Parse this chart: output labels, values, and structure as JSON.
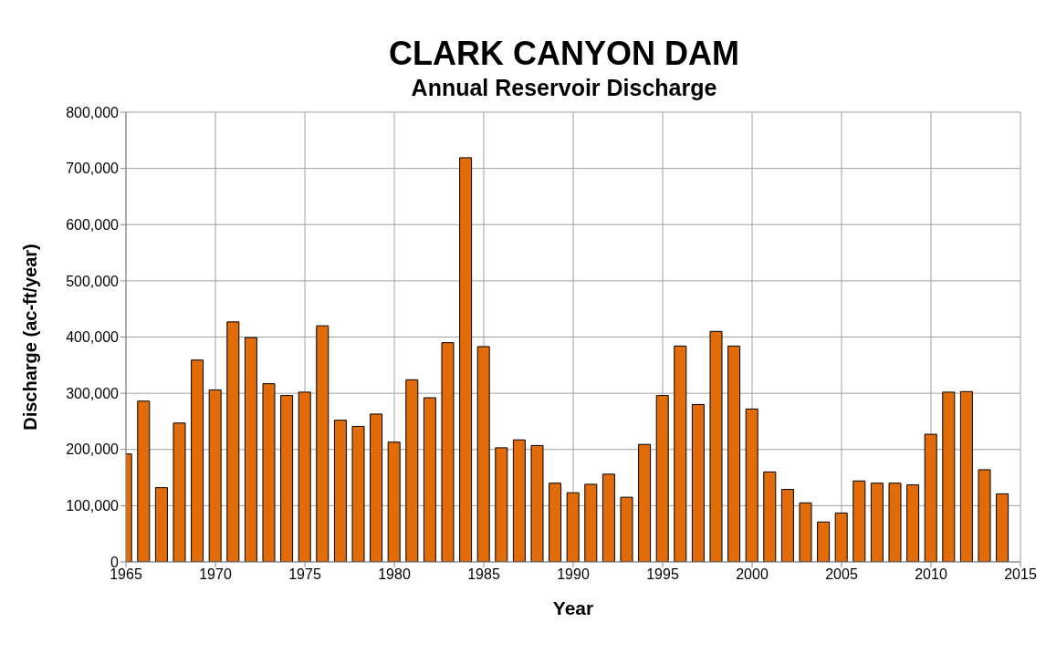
{
  "chart_data": {
    "type": "bar",
    "title": "CLARK CANYON DAM",
    "subtitle": "Annual Reservoir Discharge",
    "xlabel": "Year",
    "ylabel": "Discharge (ac-ft/year)",
    "x": [
      1965,
      1966,
      1967,
      1968,
      1969,
      1970,
      1971,
      1972,
      1973,
      1974,
      1975,
      1976,
      1977,
      1978,
      1979,
      1980,
      1981,
      1982,
      1983,
      1984,
      1985,
      1986,
      1987,
      1988,
      1989,
      1990,
      1991,
      1992,
      1993,
      1994,
      1995,
      1996,
      1997,
      1998,
      1999,
      2000,
      2001,
      2002,
      2003,
      2004,
      2005,
      2006,
      2007,
      2008,
      2009,
      2010,
      2011,
      2012,
      2013,
      2014
    ],
    "values": [
      192000,
      286000,
      132000,
      247000,
      359000,
      306000,
      427000,
      399000,
      317000,
      296000,
      302000,
      420000,
      252000,
      241000,
      263000,
      213000,
      324000,
      292000,
      390000,
      719000,
      383000,
      203000,
      217000,
      207000,
      140000,
      123000,
      138000,
      156000,
      115000,
      209000,
      296000,
      384000,
      280000,
      410000,
      384000,
      272000,
      160000,
      129000,
      105000,
      71000,
      87000,
      144000,
      140000,
      140000,
      137000,
      227000,
      302000,
      303000,
      164000,
      121000
    ],
    "color": "#e36c0a",
    "xlim": [
      1965,
      2015
    ],
    "xticks": [
      1965,
      1970,
      1975,
      1980,
      1985,
      1990,
      1995,
      2000,
      2005,
      2010,
      2015
    ],
    "ylim": [
      0,
      800000
    ],
    "yticks": [
      0,
      {
        "value": 100000,
        "label": "100,000"
      },
      {
        "value": 200000,
        "label": "200,000"
      },
      {
        "value": 300000,
        "label": "300,000"
      },
      {
        "value": 400000,
        "label": "400,000"
      },
      {
        "value": 500000,
        "label": "500,000"
      },
      {
        "value": 600000,
        "label": "600,000"
      },
      {
        "value": 700000,
        "label": "700,000"
      },
      {
        "value": 800000,
        "label": "800,000"
      }
    ],
    "grid": true
  }
}
